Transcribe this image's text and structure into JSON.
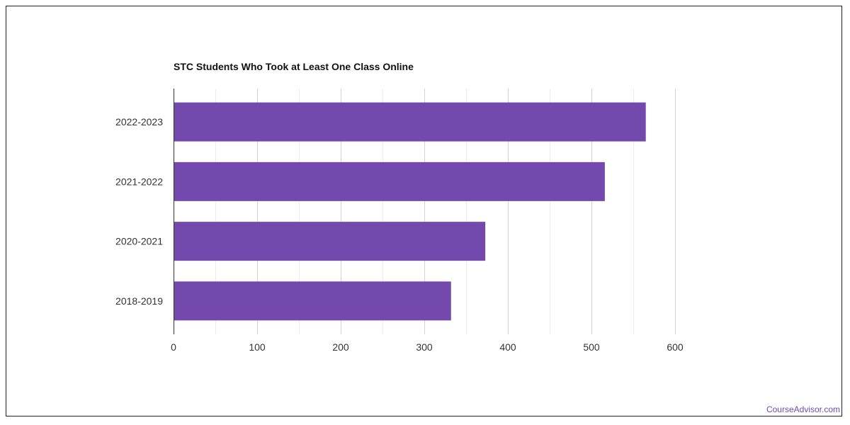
{
  "chart_data": {
    "type": "bar",
    "orientation": "horizontal",
    "title": "STC Students Who Took at Least One Class Online",
    "categories": [
      "2022-2023",
      "2021-2022",
      "2020-2021",
      "2018-2019"
    ],
    "values": [
      565,
      516,
      373,
      332
    ],
    "xlim": [
      0,
      600
    ],
    "xticks": [
      0,
      100,
      200,
      300,
      400,
      500,
      600
    ],
    "grid": true,
    "bar_color": "#7449ae"
  },
  "footer": {
    "credit": "CourseAdvisor.com"
  }
}
